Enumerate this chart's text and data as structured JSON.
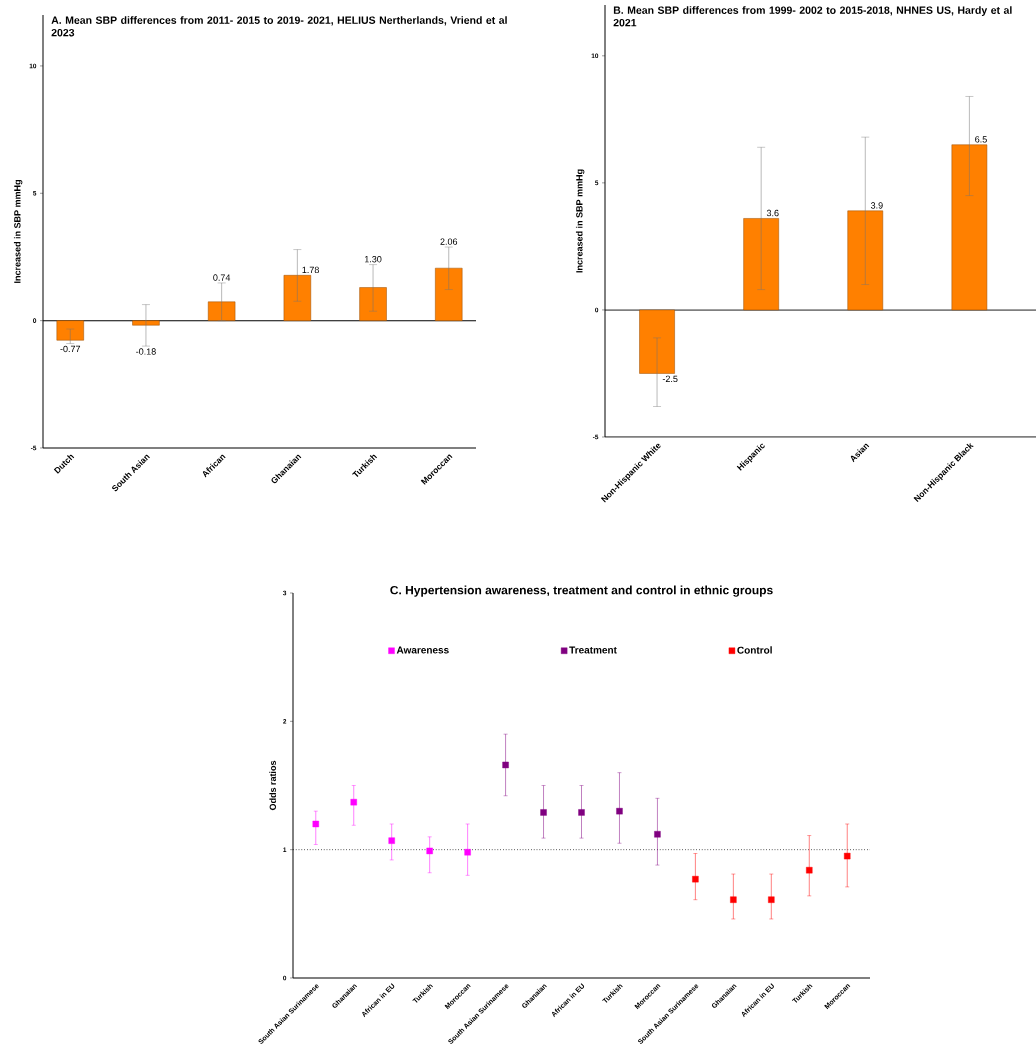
{
  "chart_data": [
    {
      "type": "bar",
      "title": "A. Mean SBP differences from 2011- 2015 to 2019- 2021, HELIUS Nertherlands, Vriend et al 2023",
      "ylabel": "Increased in SBP mmHg",
      "categories": [
        "Dutch",
        "South Asian",
        "African",
        "Ghanaian",
        "Turkish",
        "Moroccan"
      ],
      "values": [
        -0.77,
        -0.18,
        0.74,
        1.78,
        1.3,
        2.06
      ],
      "value_labels": [
        "-0.77",
        "-0.18",
        "0.74",
        "1.78",
        "1.30",
        "2.06"
      ],
      "errors": [
        [
          -0.9,
          -0.33
        ],
        [
          -1.0,
          0.63
        ],
        [
          0.0,
          1.48
        ],
        [
          0.76,
          2.79
        ],
        [
          0.37,
          2.2
        ],
        [
          1.22,
          2.89
        ]
      ],
      "color": "#ff8000",
      "ylim": [
        -5,
        12
      ],
      "yticks": [
        -5,
        0,
        5,
        10
      ]
    },
    {
      "type": "bar",
      "title": "B. Mean SBP differences from 1999- 2002 to 2015-2018, NHNES US, Hardy et al 2021",
      "ylabel": "Increased in SBP mmHg",
      "categories": [
        "Non-Hispanic White",
        "Hispanic",
        "Asian",
        "Non-Hispanic Black"
      ],
      "values": [
        -2.5,
        3.6,
        3.9,
        6.5
      ],
      "value_labels": [
        "-2.5",
        "3.6",
        "3.9",
        "6.5"
      ],
      "errors": [
        [
          -3.8,
          -1.1
        ],
        [
          0.8,
          6.4
        ],
        [
          1.0,
          6.8
        ],
        [
          4.5,
          8.4
        ]
      ],
      "color": "#ff8000",
      "ylim": [
        -5,
        12
      ],
      "yticks": [
        -5,
        0,
        5,
        10
      ]
    },
    {
      "type": "scatter",
      "title": "C. Hypertension awareness, treatment and control in ethnic groups",
      "ylabel": "Odds ratios",
      "categories": [
        "South Asian Surinamese",
        "Ghanaian",
        "African in EU",
        "Turkish",
        "Moroccan",
        "South Asian Surinamese",
        "Ghanaian",
        "African in EU",
        "Turkish",
        "Moroccan",
        "South Asian Surinamese",
        "Ghanaian",
        "African in EU",
        "Turkish",
        "Moroccan"
      ],
      "series": [
        {
          "name": "Awareness",
          "color": "#ff00ff",
          "values": [
            1.2,
            1.37,
            1.07,
            0.99,
            0.98,
            null,
            null,
            null,
            null,
            null,
            null,
            null,
            null,
            null,
            null
          ],
          "errors": [
            [
              1.04,
              1.3
            ],
            [
              1.19,
              1.5
            ],
            [
              0.92,
              1.2
            ],
            [
              0.82,
              1.1
            ],
            [
              0.8,
              1.2
            ],
            null,
            null,
            null,
            null,
            null,
            null,
            null,
            null,
            null,
            null
          ]
        },
        {
          "name": "Treatment",
          "color": "#800080",
          "values": [
            null,
            null,
            null,
            null,
            null,
            1.66,
            1.29,
            1.29,
            1.3,
            1.12,
            null,
            null,
            null,
            null,
            null
          ],
          "errors": [
            null,
            null,
            null,
            null,
            null,
            [
              1.42,
              1.9
            ],
            [
              1.09,
              1.5
            ],
            [
              1.09,
              1.5
            ],
            [
              1.05,
              1.6
            ],
            [
              0.88,
              1.4
            ],
            null,
            null,
            null,
            null,
            null
          ]
        },
        {
          "name": "Control",
          "color": "#ff0000",
          "values": [
            null,
            null,
            null,
            null,
            null,
            null,
            null,
            null,
            null,
            null,
            0.77,
            0.61,
            0.61,
            0.84,
            0.95
          ],
          "errors": [
            null,
            null,
            null,
            null,
            null,
            null,
            null,
            null,
            null,
            null,
            [
              0.61,
              0.97
            ],
            [
              0.46,
              0.81
            ],
            [
              0.46,
              0.81
            ],
            [
              0.64,
              1.11
            ],
            [
              0.71,
              1.2
            ]
          ]
        }
      ],
      "marker": "square",
      "legend": "top",
      "ylim": [
        0,
        3
      ],
      "yticks": [
        0,
        1,
        2,
        3
      ],
      "ref_lines": [
        {
          "axis": "y",
          "value": 1,
          "line_style": "dotted"
        }
      ]
    }
  ]
}
